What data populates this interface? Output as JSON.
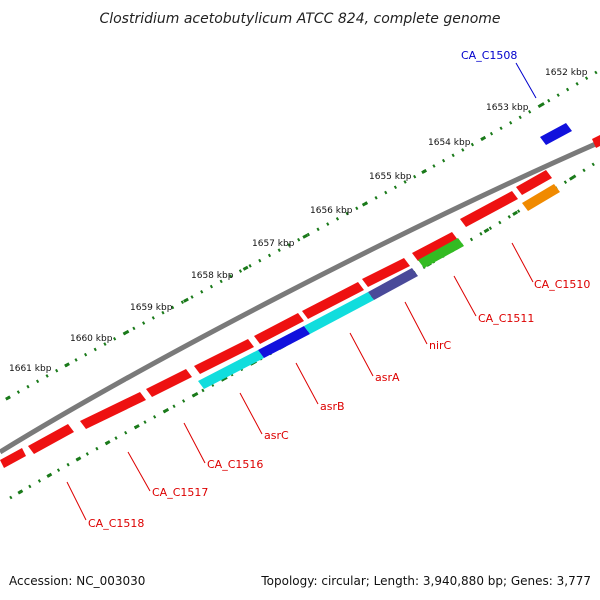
{
  "title": "Clostridium acetobutylicum ATCC 824, complete genome",
  "footer": {
    "accession": "Accession: NC_003030",
    "topology": "Topology: circular; Length: 3,940,880 bp; Genes: 3,777"
  },
  "ticks": [
    {
      "label": "1652 kbp"
    },
    {
      "label": "1653 kbp"
    },
    {
      "label": "1654 kbp"
    },
    {
      "label": "1655 kbp"
    },
    {
      "label": "1656 kbp"
    },
    {
      "label": "1657 kbp"
    },
    {
      "label": "1658 kbp"
    },
    {
      "label": "1659 kbp"
    },
    {
      "label": "1660 kbp"
    },
    {
      "label": "1661 kbp"
    }
  ],
  "gene_labels": [
    {
      "text": "CA_C1508",
      "color": "#0000cc"
    },
    {
      "text": "CA_C1510",
      "color": "#dd0000"
    },
    {
      "text": "CA_C1511",
      "color": "#dd0000"
    },
    {
      "text": "nirC",
      "color": "#dd0000"
    },
    {
      "text": "asrA",
      "color": "#dd0000"
    },
    {
      "text": "asrB",
      "color": "#dd0000"
    },
    {
      "text": "asrC",
      "color": "#dd0000"
    },
    {
      "text": "CA_C1516",
      "color": "#dd0000"
    },
    {
      "text": "CA_C1517",
      "color": "#dd0000"
    },
    {
      "text": "CA_C1518",
      "color": "#dd0000"
    }
  ],
  "colors": {
    "backbone": "#7a7a7a",
    "tick_dots": "#1a7a1a",
    "cds": "#ee1111",
    "blue": "#1111dd",
    "orange": "#f08a00",
    "green": "#33bb22",
    "slate": "#4a4a99",
    "cyan": "#11dddd"
  }
}
